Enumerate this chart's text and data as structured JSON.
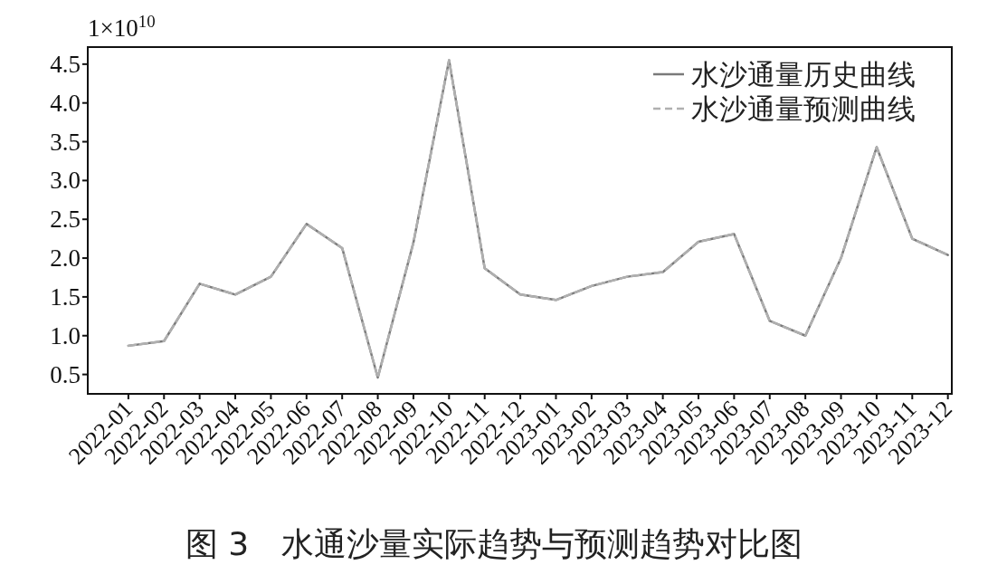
{
  "chart_data": {
    "type": "line",
    "title": "图 3　水通沙量实际趋势与预测趋势对比图",
    "ylabel": "1×10$^{10}$",
    "categories": [
      "2022-01",
      "2022-02",
      "2022-03",
      "2022-04",
      "2022-05",
      "2022-06",
      "2022-07",
      "2022-08",
      "2022-09",
      "2022-10",
      "2022-11",
      "2022-12",
      "2023-01",
      "2023-02",
      "2023-03",
      "2023-04",
      "2023-05",
      "2023-06",
      "2023-07",
      "2023-08",
      "2023-09",
      "2023-10",
      "2023-11",
      "2023-12"
    ],
    "series": [
      {
        "name": "水沙通量历史曲线",
        "color": "#7a7a7a",
        "line_style": "solid",
        "values": [
          0.87,
          0.93,
          1.67,
          1.53,
          1.76,
          2.44,
          2.13,
          0.46,
          2.2,
          4.55,
          1.87,
          1.53,
          1.46,
          1.64,
          1.76,
          1.82,
          2.21,
          2.31,
          1.19,
          1.0,
          2.0,
          3.43,
          2.25,
          2.04
        ]
      },
      {
        "name": "水沙通量预测曲线",
        "color": "#b0b0b0",
        "line_style": "dashed",
        "values": [
          0.87,
          0.93,
          1.67,
          1.53,
          1.76,
          2.44,
          2.13,
          0.46,
          2.2,
          4.55,
          1.87,
          1.53,
          1.46,
          1.64,
          1.76,
          1.82,
          2.21,
          2.31,
          1.19,
          1.0,
          2.0,
          3.43,
          2.25,
          2.04
        ]
      }
    ],
    "ylim": [
      0.25,
      4.72
    ],
    "yticks": [
      {
        "value": 0.5,
        "label": "0.5"
      },
      {
        "value": 1,
        "label": "1.0"
      },
      {
        "value": 1.5,
        "label": "1.5"
      },
      {
        "value": 2,
        "label": "2.0"
      },
      {
        "value": 2.5,
        "label": "2.5"
      },
      {
        "value": 3,
        "label": "3.0"
      },
      {
        "value": 3.5,
        "label": "3.5"
      },
      {
        "value": 4,
        "label": "4.0"
      },
      {
        "value": 4.5,
        "label": "4.5"
      }
    ],
    "grid": false,
    "legend": "top right"
  }
}
